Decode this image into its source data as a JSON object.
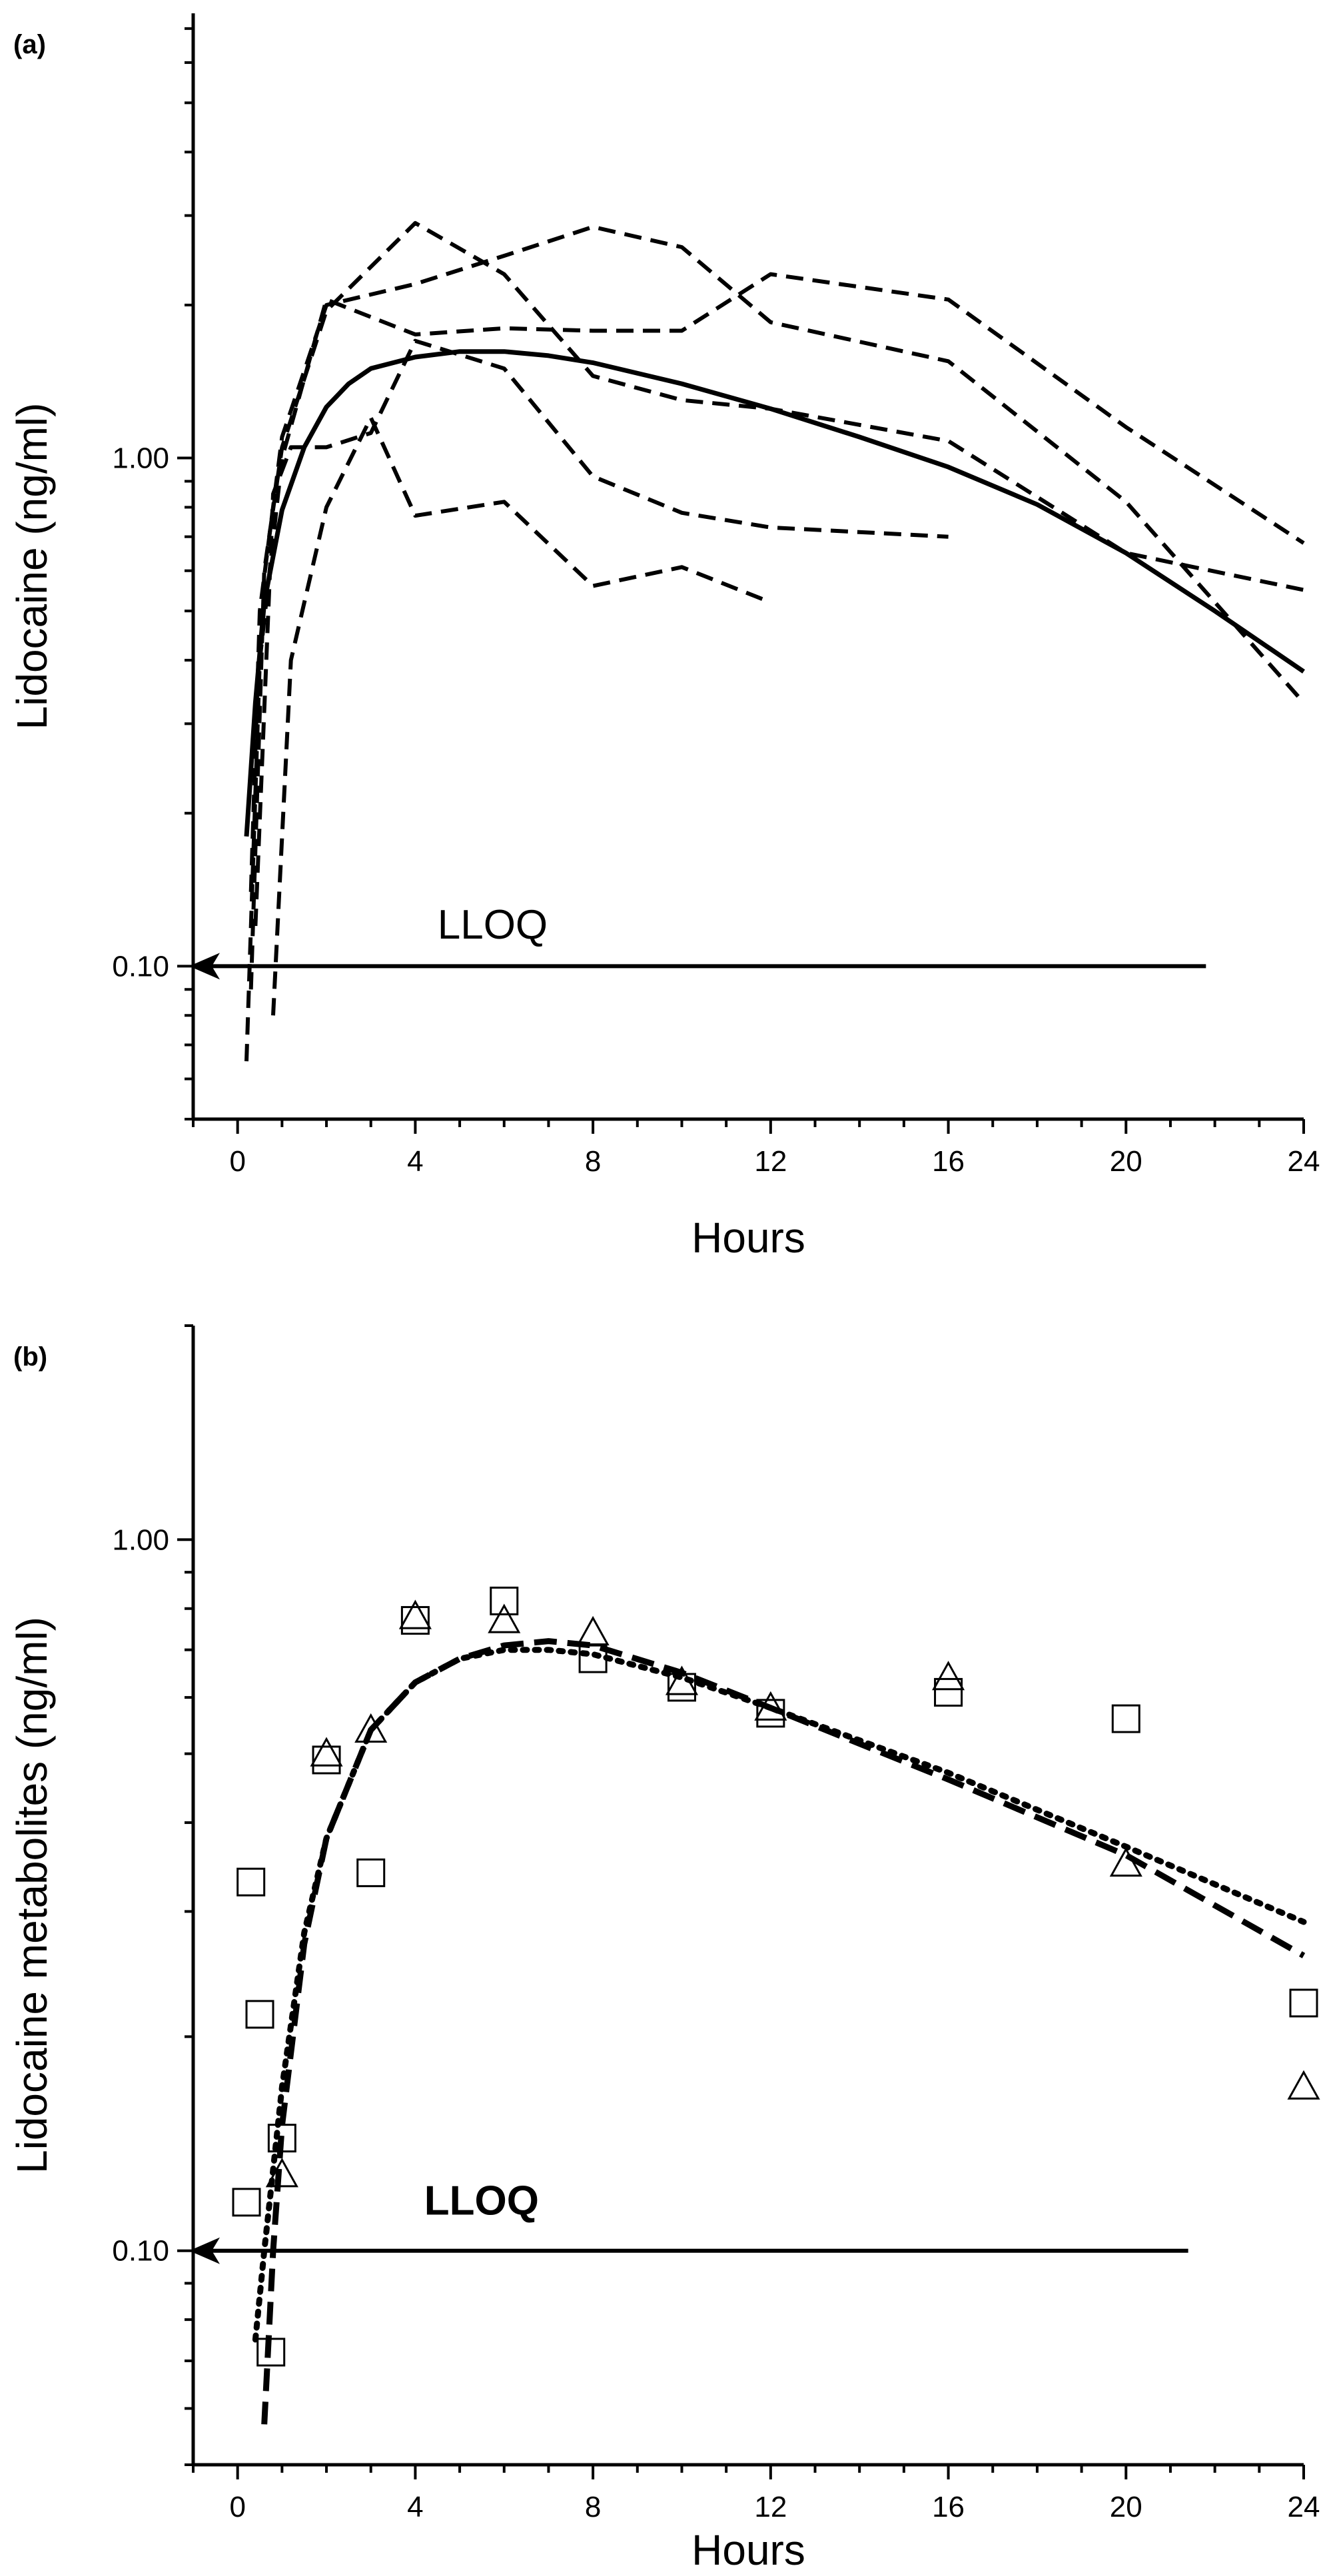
{
  "chart_data": [
    {
      "panel_label": "(a)",
      "type": "line",
      "xlabel": "Hours",
      "ylabel": "Lidocaine (ng/ml)",
      "xlim": [
        -1,
        24
      ],
      "ylim": [
        0.05,
        7.5
      ],
      "yscale": "log",
      "xticks": [
        0,
        4,
        8,
        12,
        16,
        20,
        24
      ],
      "xtick_labels": [
        "0",
        "4",
        "8",
        "12",
        "16",
        "20",
        "24"
      ],
      "yticks": [
        0.1,
        1.0
      ],
      "ytick_labels": [
        "0.10",
        "1.00"
      ],
      "grid": false,
      "annotation": {
        "text": "LLOQ",
        "x": 4.5,
        "y": 0.11,
        "line_y": 0.1,
        "line_x_end": 21.8
      },
      "series": [
        {
          "style": "solid",
          "x": [
            0.2,
            0.4,
            0.6,
            1.0,
            1.5,
            2,
            2.5,
            3,
            4,
            5,
            6,
            7,
            8,
            10,
            12,
            14,
            16,
            18,
            20,
            22,
            24
          ],
          "y": [
            0.18,
            0.33,
            0.52,
            0.79,
            1.05,
            1.26,
            1.4,
            1.5,
            1.58,
            1.62,
            1.62,
            1.59,
            1.54,
            1.4,
            1.25,
            1.1,
            0.96,
            0.81,
            0.65,
            0.5,
            0.38
          ]
        },
        {
          "style": "dashed",
          "x": [
            0.3,
            0.5,
            1,
            2,
            4,
            6,
            8,
            10,
            12,
            16,
            20,
            24
          ],
          "y": [
            0.14,
            0.5,
            1.1,
            2.0,
            2.2,
            2.5,
            2.85,
            2.6,
            1.85,
            1.55,
            0.82,
            0.33
          ]
        },
        {
          "style": "dashed",
          "x": [
            0.2,
            0.5,
            1,
            2,
            4,
            6,
            8,
            10,
            12,
            16,
            20,
            24
          ],
          "y": [
            0.065,
            0.4,
            1.0,
            2.05,
            1.75,
            1.8,
            1.78,
            1.78,
            2.3,
            2.05,
            1.15,
            0.68
          ]
        },
        {
          "style": "dashed",
          "x": [
            0.3,
            0.6,
            1,
            2,
            4,
            6,
            8,
            10,
            12,
            16,
            20,
            24
          ],
          "y": [
            0.09,
            0.6,
            1.05,
            1.95,
            2.9,
            2.3,
            1.45,
            1.3,
            1.25,
            1.08,
            0.65,
            0.55
          ]
        },
        {
          "style": "dashed",
          "x": [
            0.4,
            0.8,
            1.2,
            2,
            3,
            4,
            6,
            8,
            10,
            12,
            16
          ],
          "y": [
            0.12,
            0.85,
            1.05,
            1.05,
            1.12,
            1.7,
            1.5,
            0.92,
            0.78,
            0.73,
            0.7
          ]
        },
        {
          "style": "dashed",
          "x": [
            0.8,
            1.2,
            2,
            3,
            4,
            6,
            8,
            10,
            12
          ],
          "y": [
            0.08,
            0.4,
            0.8,
            1.2,
            0.77,
            0.82,
            0.56,
            0.61,
            0.52
          ]
        }
      ]
    },
    {
      "panel_label": "(b)",
      "type": "scatter",
      "xlabel": "Hours",
      "ylabel": "Lidocaine metabolites (ng/ml)",
      "xlim": [
        -1,
        24
      ],
      "ylim": [
        0.05,
        2.0
      ],
      "yscale": "log",
      "xticks": [
        0,
        4,
        8,
        12,
        16,
        20,
        24
      ],
      "xtick_labels": [
        "0",
        "4",
        "8",
        "12",
        "16",
        "20",
        "24"
      ],
      "yticks": [
        0.1,
        1.0
      ],
      "ytick_labels": [
        "0.10",
        "1.00"
      ],
      "grid": false,
      "annotation": {
        "text": "LLOQ",
        "x": 4.2,
        "y": 0.11,
        "line_y": 0.1,
        "line_x_end": 21.4
      },
      "markers": [
        {
          "shape": "square",
          "x": [
            0.2,
            0.3,
            0.5,
            0.75,
            1.0,
            2.0,
            3.0,
            4.0,
            6.0,
            8.0,
            10.0,
            12.0,
            16.0,
            20.0,
            24.0
          ],
          "y": [
            0.117,
            0.33,
            0.215,
            0.072,
            0.144,
            0.49,
            0.34,
            0.77,
            0.82,
            0.68,
            0.62,
            0.57,
            0.61,
            0.56,
            0.223
          ]
        },
        {
          "shape": "triangle",
          "x": [
            1.0,
            2.0,
            3.0,
            4.0,
            6.0,
            8.0,
            10.0,
            12.0,
            16.0,
            20.0,
            24.0
          ],
          "y": [
            0.128,
            0.5,
            0.54,
            0.78,
            0.77,
            0.74,
            0.63,
            0.58,
            0.64,
            0.35,
            0.17
          ]
        }
      ],
      "series": [
        {
          "style": "dashed",
          "x": [
            0.6,
            0.8,
            1.0,
            1.5,
            2,
            3,
            4,
            5,
            6,
            7,
            8,
            10,
            12,
            16,
            20,
            24
          ],
          "y": [
            0.057,
            0.1,
            0.15,
            0.27,
            0.38,
            0.54,
            0.63,
            0.68,
            0.71,
            0.72,
            0.71,
            0.65,
            0.58,
            0.46,
            0.36,
            0.26
          ]
        },
        {
          "style": "dotted",
          "x": [
            0.4,
            0.6,
            0.8,
            1.0,
            1.5,
            2,
            3,
            4,
            5,
            6,
            7,
            8,
            10,
            12,
            16,
            20,
            24
          ],
          "y": [
            0.075,
            0.1,
            0.13,
            0.17,
            0.28,
            0.38,
            0.54,
            0.63,
            0.68,
            0.7,
            0.7,
            0.69,
            0.64,
            0.58,
            0.47,
            0.37,
            0.29
          ]
        }
      ]
    }
  ]
}
